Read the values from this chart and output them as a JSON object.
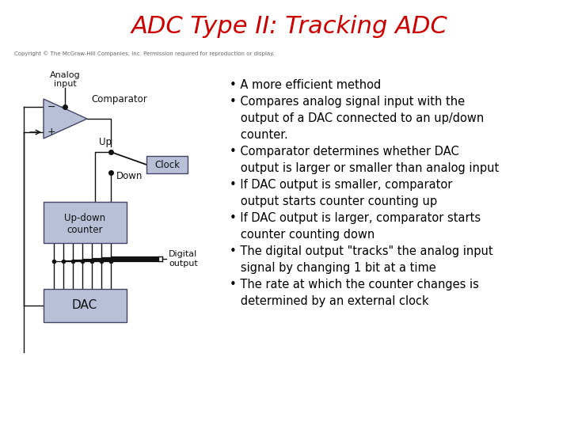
{
  "title": "ADC Type II: Tracking ADC",
  "title_color": "#cc0000",
  "title_fontsize": 22,
  "background_color": "#ffffff",
  "copyright_text": "Copyright © The McGraw-Hill Companies, Inc. Permission required for reproduction or display.",
  "bullet_points": [
    "• A more efficient method",
    "• Compares analog signal input with the\n   output of a DAC connected to an up/down\n   counter.",
    "• Comparator determines whether DAC\n   output is larger or smaller than analog input",
    "• If DAC output is smaller, comparator\n   output starts counter counting up",
    "• If DAC output is larger, comparator starts\n   counter counting down",
    "• The digital output \"tracks\" the analog input\n   signal by changing 1 bit at a time",
    "• The rate at which the counter changes is\n   determined by an external clock"
  ],
  "box_color": "#b8c0d8",
  "box_edge_color": "#444466",
  "line_color": "#111111",
  "text_color": "#000000",
  "bullet_fontsize": 10.5,
  "diagram_scale": 1.0
}
